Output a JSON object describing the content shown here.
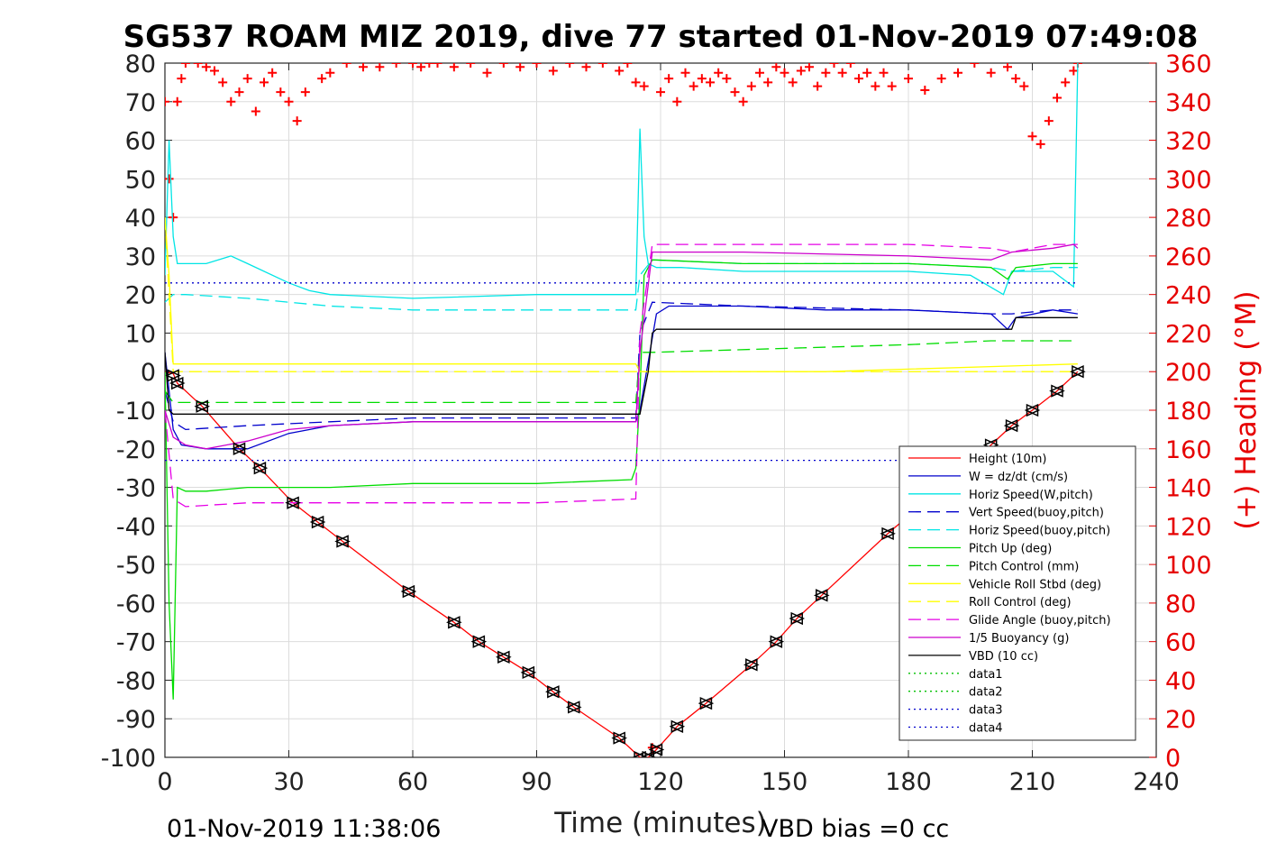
{
  "chart_data": {
    "type": "line",
    "title": "SG537 ROAM MIZ 2019, dive 77 started 01-Nov-2019 07:49:08",
    "xlabel": "Time (minutes)",
    "ylabel_right": "(+) Heading (°M)",
    "xlim": [
      0,
      240
    ],
    "ylim": [
      -100,
      80
    ],
    "ylim_right": [
      0,
      360
    ],
    "x_ticks": [
      0,
      30,
      60,
      90,
      120,
      150,
      180,
      210,
      240
    ],
    "y_ticks": [
      -100,
      -90,
      -80,
      -70,
      -60,
      -50,
      -40,
      -30,
      -20,
      -10,
      0,
      10,
      20,
      30,
      40,
      50,
      60,
      70,
      80
    ],
    "y_ticks_right": [
      0,
      20,
      40,
      60,
      80,
      100,
      120,
      140,
      160,
      180,
      200,
      220,
      240,
      260,
      280,
      300,
      320,
      340,
      360
    ],
    "grid": true,
    "legend_position": "lower-right",
    "footer_left": "01-Nov-2019 11:38:06",
    "footer_right": "VBD bias =0 cc",
    "series": [
      {
        "name": "Height (10m)",
        "color": "#ff0000",
        "style": "solid",
        "x": [
          0,
          2,
          3,
          9,
          18,
          23,
          31,
          37,
          43,
          59,
          70,
          76,
          82,
          88,
          94,
          99,
          110,
          115,
          117,
          119,
          124,
          131,
          142,
          148,
          153,
          159,
          175,
          200,
          205,
          210,
          216,
          221
        ],
        "y": [
          0,
          -0.5,
          -3,
          -9,
          -20,
          -25,
          -34,
          -39,
          -44,
          -57,
          -65,
          -70,
          -74,
          -78,
          -83,
          -87,
          -95,
          -100,
          -100,
          -98,
          -92,
          -86,
          -76,
          -70,
          -64,
          -58,
          -42,
          -19,
          -14,
          -10,
          -5,
          0
        ]
      },
      {
        "name": "W = dz/dt (cm/s)",
        "color": "#0000cc",
        "style": "solid",
        "x": [
          0,
          1,
          2,
          4,
          10,
          20,
          30,
          40,
          60,
          90,
          114,
          115,
          119,
          122,
          140,
          160,
          180,
          200,
          204,
          206,
          215,
          221
        ],
        "y": [
          5,
          -5,
          -15,
          -19,
          -20,
          -20,
          -16,
          -14,
          -13,
          -13,
          -13,
          -10,
          15,
          17,
          17,
          16,
          16,
          15,
          11,
          14,
          16,
          15
        ]
      },
      {
        "name": "Horiz Speed(W,pitch)",
        "color": "#00e5e5",
        "style": "solid",
        "x": [
          0,
          1,
          2,
          3,
          10,
          16,
          20,
          30,
          35,
          40,
          60,
          90,
          114,
          115,
          116,
          117,
          119,
          125,
          140,
          160,
          180,
          195,
          203,
          205,
          210,
          215,
          220,
          221
        ],
        "y": [
          25,
          60,
          35,
          28,
          28,
          30,
          28,
          23,
          21,
          20,
          19,
          20,
          20,
          63,
          35,
          28,
          27,
          27,
          26,
          26,
          26,
          25,
          20,
          26,
          26,
          26,
          22,
          80
        ]
      },
      {
        "name": "Vert Speed(buoy,pitch)",
        "color": "#0000cc",
        "style": "dashed",
        "x": [
          0,
          2,
          5,
          20,
          40,
          60,
          90,
          114,
          115,
          118,
          140,
          180,
          200,
          205,
          215,
          221
        ],
        "y": [
          -5,
          -13,
          -15,
          -14,
          -13,
          -12,
          -12,
          -12,
          10,
          18,
          17,
          16,
          15,
          15,
          16,
          16
        ]
      },
      {
        "name": "Horiz Speed(buoy,pitch)",
        "color": "#00e5e5",
        "style": "dashed",
        "x": [
          0,
          2,
          5,
          20,
          40,
          60,
          90,
          114,
          115,
          118,
          140,
          180,
          200,
          205,
          215,
          221
        ],
        "y": [
          18,
          20,
          20,
          19,
          17,
          16,
          16,
          16,
          25,
          29,
          28,
          28,
          27,
          26,
          27,
          27
        ]
      },
      {
        "name": "Pitch Up (deg)",
        "color": "#00dd00",
        "style": "solid",
        "x": [
          0,
          1,
          2,
          3,
          5,
          10,
          20,
          40,
          60,
          90,
          113,
          114,
          115,
          116,
          118,
          140,
          180,
          200,
          204,
          206,
          215,
          221
        ],
        "y": [
          0,
          -60,
          -85,
          -30,
          -31,
          -31,
          -30,
          -30,
          -29,
          -29,
          -28,
          -25,
          -6,
          25,
          29,
          28,
          28,
          27,
          24,
          27,
          28,
          28
        ]
      },
      {
        "name": "Pitch Control (mm)",
        "color": "#00dd00",
        "style": "dashed",
        "x": [
          0,
          2,
          4,
          114,
          115,
          118,
          180,
          200,
          221
        ],
        "y": [
          -5,
          -8,
          -8,
          -8,
          5,
          5,
          7,
          8,
          8
        ]
      },
      {
        "name": "Vehicle Roll Stbd (deg)",
        "color": "#ffff00",
        "style": "solid",
        "x": [
          0,
          1,
          2,
          4,
          20,
          60,
          114,
          115,
          118,
          120,
          160,
          221
        ],
        "y": [
          40,
          25,
          2,
          2,
          2,
          2,
          2,
          0,
          0,
          0,
          0,
          2
        ]
      },
      {
        "name": "Roll Control (deg)",
        "color": "#ffff00",
        "style": "dashed",
        "x": [
          0,
          2,
          4,
          60,
          114,
          115,
          118,
          221
        ],
        "y": [
          40,
          0,
          0,
          0,
          0,
          0,
          0,
          0
        ]
      },
      {
        "name": "Glide Angle (buoy,pitch)",
        "color": "#e600e6",
        "style": "dashed",
        "x": [
          0,
          2,
          5,
          20,
          40,
          60,
          90,
          114,
          115,
          118,
          150,
          180,
          200,
          205,
          215,
          221
        ],
        "y": [
          -10,
          -33,
          -35,
          -34,
          -34,
          -34,
          -34,
          -33,
          10,
          33,
          33,
          33,
          32,
          31,
          33,
          33
        ]
      },
      {
        "name": "1/5 Buoyancy (g)",
        "color": "#cc00cc",
        "style": "solid",
        "x": [
          0,
          2,
          5,
          10,
          20,
          30,
          40,
          60,
          90,
          114,
          115,
          118,
          140,
          180,
          200,
          205,
          215,
          220,
          221
        ],
        "y": [
          -10,
          -17,
          -19,
          -20,
          -18,
          -15,
          -14,
          -13,
          -13,
          -13,
          5,
          31,
          31,
          30,
          29,
          31,
          32,
          33,
          32
        ]
      },
      {
        "name": "VBD (10 cc)",
        "color": "#000000",
        "style": "solid",
        "x": [
          0,
          1,
          2,
          5,
          115,
          117,
          118,
          119,
          205,
          206,
          221
        ],
        "y": [
          5,
          -10,
          -11,
          -11,
          -11,
          0,
          10,
          11,
          11,
          14,
          14
        ]
      },
      {
        "name": "data1",
        "color": "#00c000",
        "style": "dotted",
        "x": [],
        "y": []
      },
      {
        "name": "data2",
        "color": "#00c000",
        "style": "dotted",
        "x": [],
        "y": []
      },
      {
        "name": "data3",
        "color": "#0000cc",
        "style": "dotted",
        "x": [
          0,
          221
        ],
        "y": [
          -23,
          -23
        ]
      },
      {
        "name": "data4",
        "color": "#0000cc",
        "style": "dotted",
        "x": [
          0,
          221
        ],
        "y": [
          23,
          23
        ]
      }
    ],
    "depth_markers": {
      "color": "#000000",
      "x": [
        2,
        3,
        9,
        18,
        23,
        31,
        37,
        43,
        59,
        70,
        76,
        82,
        88,
        94,
        99,
        110,
        115,
        117,
        119,
        124,
        131,
        142,
        148,
        153,
        159,
        175,
        200,
        205,
        210,
        216,
        221
      ],
      "y": [
        -1,
        -3,
        -9,
        -20,
        -25,
        -34,
        -39,
        -44,
        -57,
        -65,
        -70,
        -74,
        -78,
        -83,
        -87,
        -95,
        -100,
        -100,
        -98,
        -92,
        -86,
        -76,
        -70,
        -64,
        -58,
        -42,
        -19,
        -14,
        -10,
        -5,
        0
      ]
    },
    "heading": {
      "name": "(+) Heading (°M)",
      "color": "#ff0000",
      "marker": "+",
      "x": [
        0,
        1,
        2,
        3,
        4,
        5,
        8,
        10,
        12,
        14,
        16,
        18,
        20,
        22,
        24,
        26,
        28,
        30,
        32,
        34,
        38,
        40,
        44,
        48,
        52,
        56,
        60,
        62,
        64,
        66,
        70,
        74,
        78,
        82,
        86,
        90,
        94,
        98,
        102,
        106,
        110,
        112,
        114,
        116,
        118,
        120,
        122,
        124,
        126,
        128,
        130,
        132,
        134,
        136,
        138,
        140,
        142,
        144,
        146,
        148,
        150,
        152,
        154,
        156,
        158,
        160,
        162,
        164,
        166,
        168,
        170,
        172,
        174,
        176,
        180,
        184,
        188,
        192,
        196,
        200,
        204,
        206,
        208,
        210,
        212,
        214,
        216,
        218,
        220,
        221
      ],
      "y": [
        340,
        300,
        280,
        340,
        352,
        360,
        360,
        358,
        356,
        350,
        340,
        345,
        352,
        335,
        350,
        355,
        345,
        340,
        330,
        345,
        352,
        355,
        360,
        358,
        358,
        360,
        360,
        358,
        360,
        360,
        358,
        360,
        355,
        360,
        358,
        360,
        356,
        360,
        358,
        360,
        356,
        360,
        350,
        348,
        5,
        345,
        352,
        340,
        355,
        348,
        352,
        350,
        355,
        352,
        345,
        340,
        348,
        355,
        350,
        358,
        355,
        350,
        356,
        358,
        348,
        355,
        360,
        355,
        360,
        352,
        355,
        348,
        355,
        348,
        352,
        346,
        352,
        355,
        360,
        355,
        358,
        352,
        348,
        322,
        318,
        330,
        342,
        350,
        356,
        360
      ]
    }
  }
}
